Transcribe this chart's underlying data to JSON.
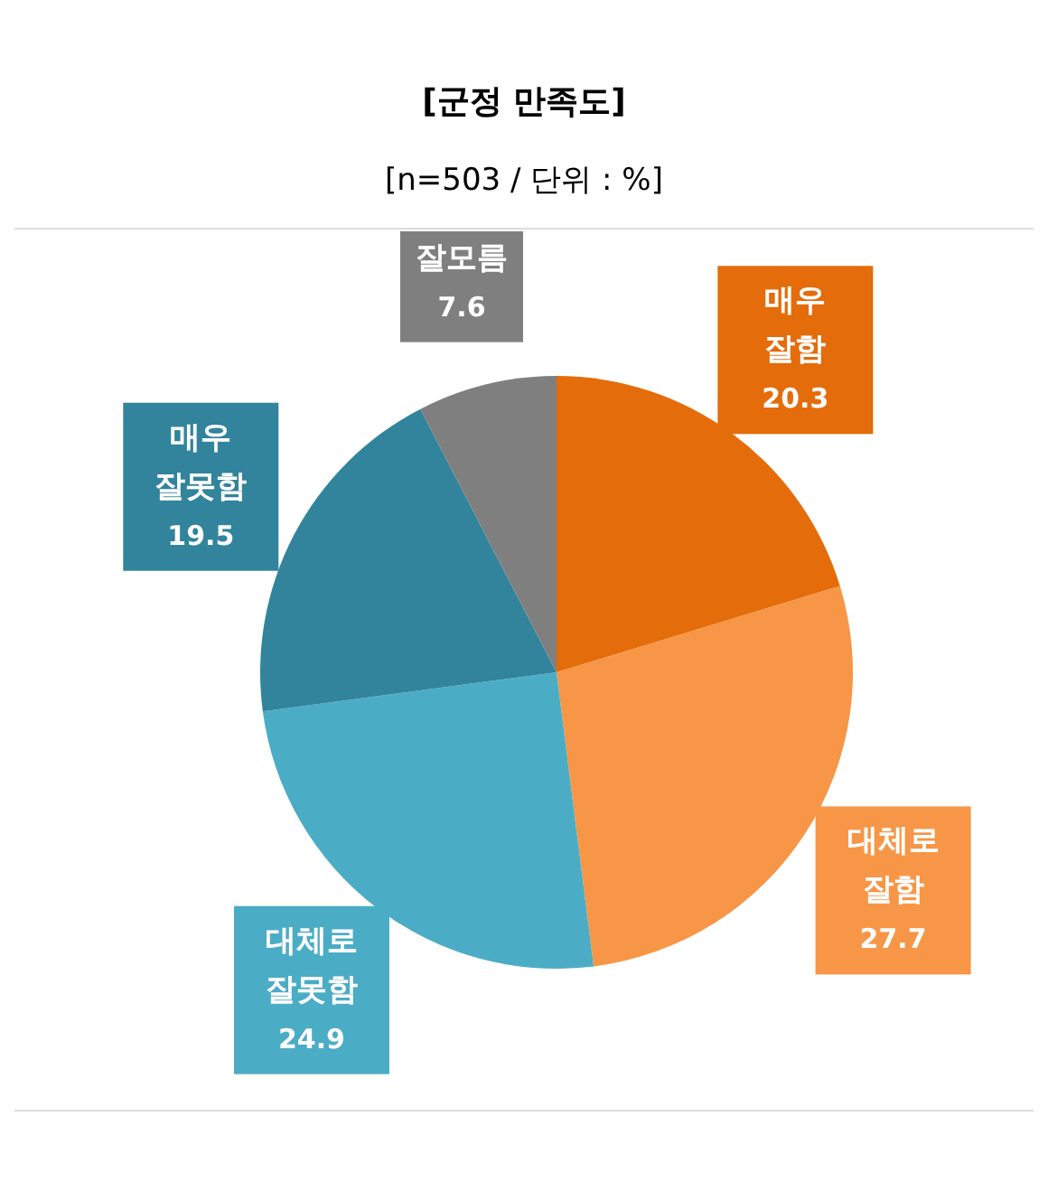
{
  "chart_data": {
    "type": "pie",
    "title": "[군정 만족도]",
    "subtitle": "[n=503 / 단위 : %]",
    "categories": [
      "매우 잘함",
      "대체로 잘함",
      "대체로 잘못함",
      "매우 잘못함",
      "잘모름"
    ],
    "values": [
      20.3,
      27.7,
      24.9,
      19.5,
      7.6
    ],
    "colors": [
      "#e46c0a",
      "#f79646",
      "#4bacc6",
      "#31849b",
      "#7f7f7f"
    ],
    "data_labels": true,
    "legend": false
  }
}
